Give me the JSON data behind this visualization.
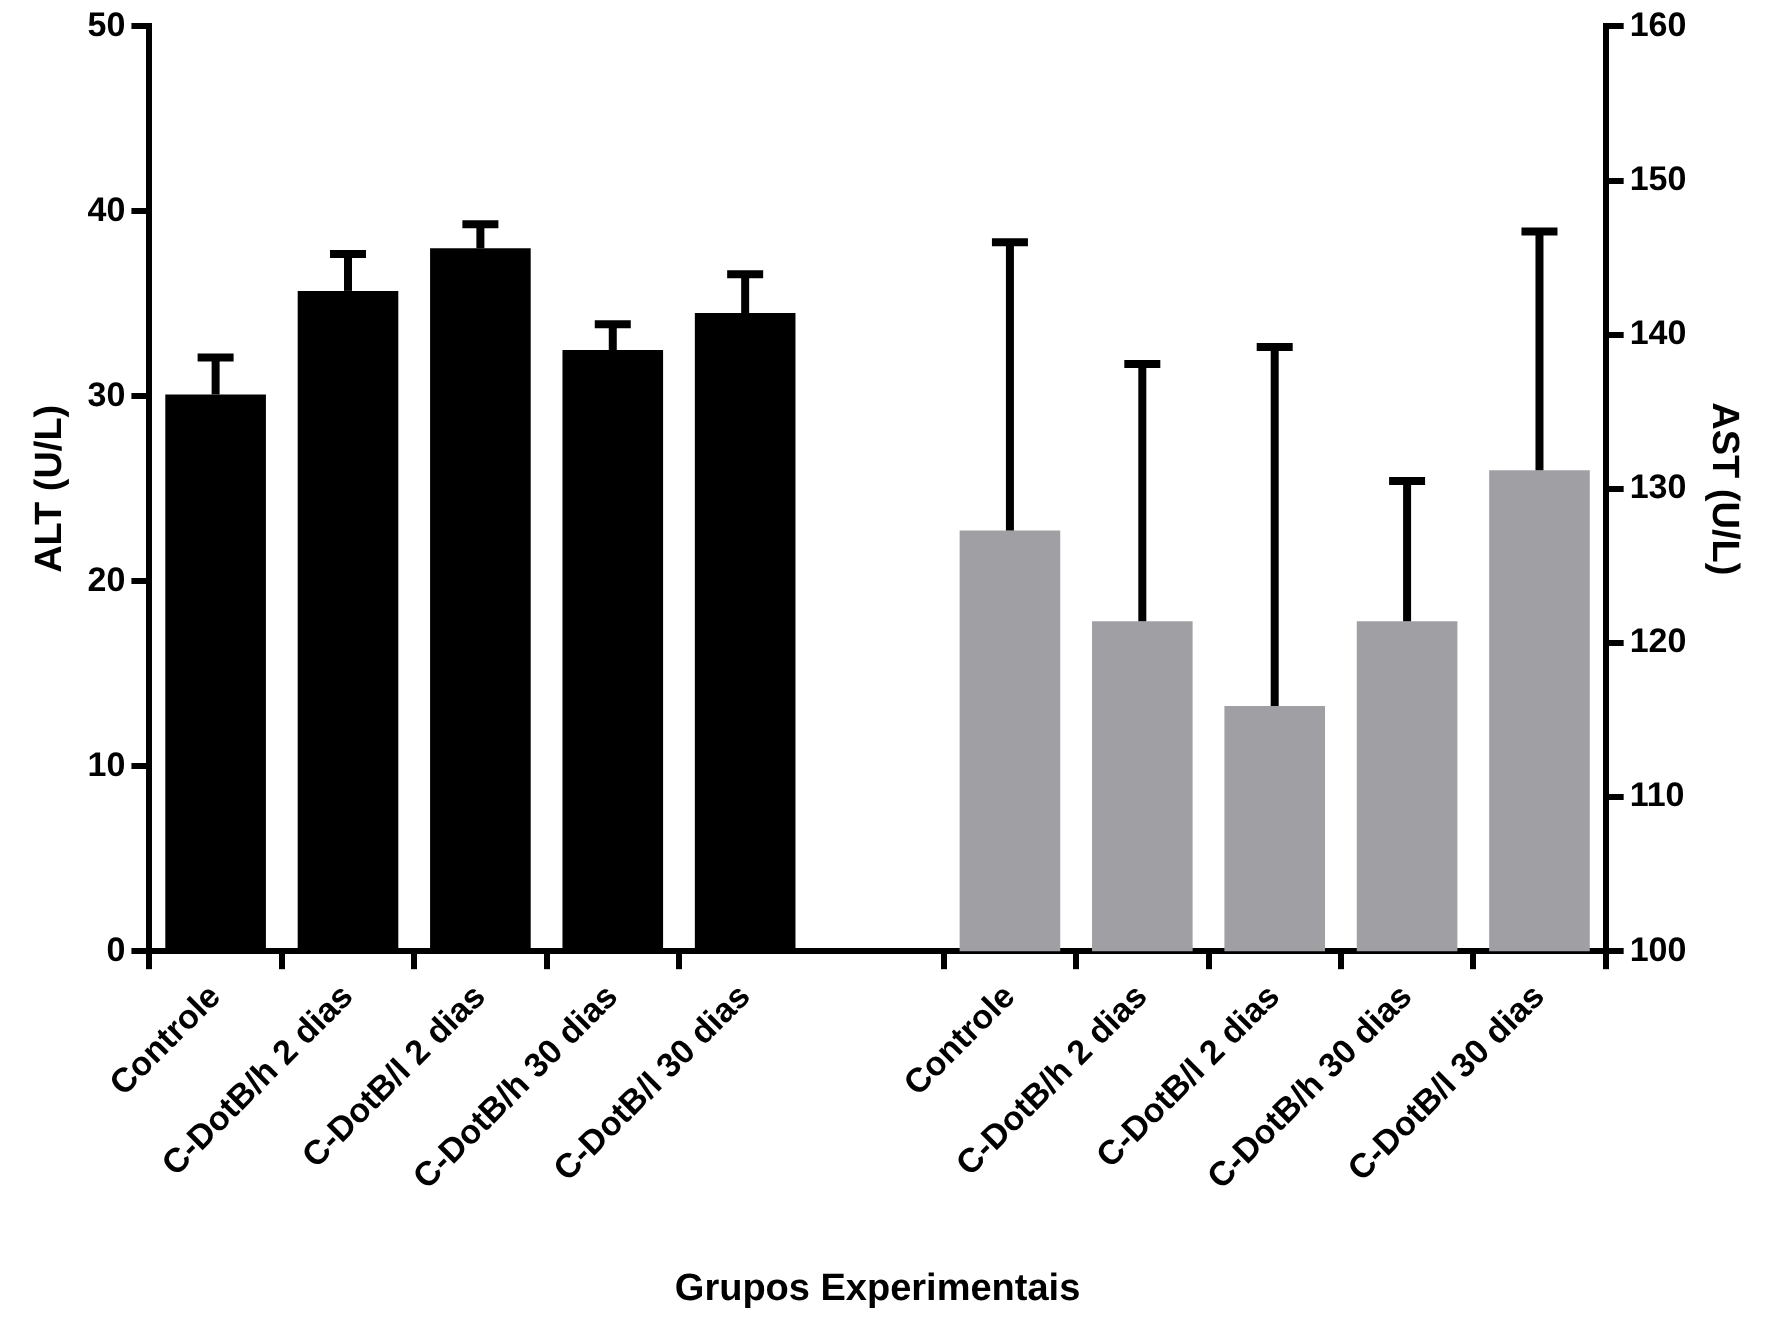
{
  "chart_data": {
    "type": "bar",
    "categories": [
      "Controle",
      "C-DotB/h 2 dias",
      "C-DotB/l 2 dias",
      "C-DotB/h 30 dias",
      "C-DotB/l 30 dias",
      null,
      "Controle",
      "C-DotB/h 2 dias",
      "C-DotB/l 2 dias",
      "C-DotB/h 30 dias",
      "C-DotB/l 30 dias"
    ],
    "xlabel": "Grupos Experimentais",
    "ylabel": "ALT (U/L)",
    "y2label": "AST (U/L)",
    "series": [
      {
        "color": "#000000",
        "values": [
          30.1,
          35.7,
          38.0,
          32.5,
          34.5,
          null,
          null,
          null,
          null,
          null,
          null
        ],
        "errors": [
          [
            30.1,
            32.1
          ],
          [
            35.7,
            37.7
          ],
          [
            38.0,
            39.3
          ],
          [
            32.5,
            33.9
          ],
          [
            34.5,
            36.6
          ],
          null,
          null,
          null,
          null,
          null,
          null
        ]
      },
      {
        "color": "#a09fa4",
        "axis": "y2",
        "values": [
          null,
          null,
          null,
          null,
          null,
          null,
          127.3,
          121.4,
          115.9,
          121.4,
          131.2
        ],
        "errors": [
          null,
          null,
          null,
          null,
          null,
          null,
          [
            127.3,
            146.0
          ],
          [
            121.4,
            138.1
          ],
          [
            115.9,
            139.2
          ],
          [
            121.4,
            130.5
          ],
          [
            131.2,
            146.7
          ]
        ]
      }
    ],
    "ylim": [
      0,
      50
    ],
    "yticks": [
      0,
      10,
      20,
      30,
      40,
      50
    ],
    "y2lim": [
      100,
      160
    ],
    "y2ticks": [
      100,
      110,
      120,
      130,
      140,
      150,
      160
    ],
    "grid": false,
    "legend": false
  }
}
